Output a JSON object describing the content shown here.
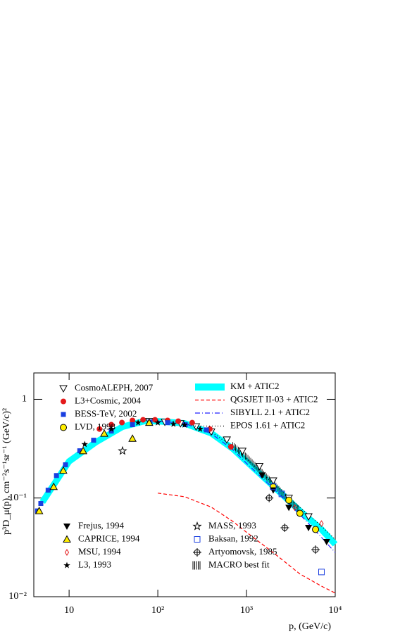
{
  "chart_data": {
    "type": "scatter",
    "x_label": "p, (GeV/c)",
    "y_label": "p³D_μ(p), cm⁻²s⁻¹sr⁻¹ (GeV/c)²",
    "xscale": "log",
    "yscale": "log",
    "xlim": [
      4,
      10000
    ],
    "ylim": [
      0.01,
      1.85
    ],
    "xticks": [
      10,
      {
        "value": 100,
        "label": "10²"
      },
      {
        "value": 1000,
        "label": "10³"
      },
      {
        "value": 10000,
        "label": "10⁴"
      }
    ],
    "yticks": [
      {
        "value": 0.01,
        "label": "10⁻²"
      },
      {
        "value": 0.1,
        "label": "10⁻¹"
      },
      1
    ],
    "series": [
      {
        "name": "CosmoALEPH, 2007",
        "color": "#000000",
        "marker": "down-triangle-open",
        "x": [
          80,
          120,
          180,
          270,
          400,
          600,
          900,
          1400,
          2000,
          3000,
          5000
        ],
        "values": [
          0.6,
          0.59,
          0.57,
          0.53,
          0.47,
          0.39,
          0.3,
          0.21,
          0.15,
          0.1,
          0.065
        ]
      },
      {
        "name": "L3+Cosmic, 2004",
        "color": "#e41a1c",
        "marker": "circle",
        "x": [
          22,
          29.9,
          39.4,
          51.8,
          68.2,
          93,
          129,
          170,
          244,
          386,
          667
        ],
        "values": [
          0.5,
          0.553,
          0.581,
          0.611,
          0.62,
          0.62,
          0.611,
          0.6,
          0.58,
          0.5,
          0.33
        ]
      },
      {
        "name": "BESS-TeV, 2002",
        "color": "#1a3fe0",
        "marker": "square",
        "x": [
          4.4,
          4.8,
          5.8,
          7.2,
          9.1,
          13.2,
          18.9,
          29.9,
          51.8,
          81.8,
          129,
          204,
          353
        ],
        "values": [
          0.074,
          0.088,
          0.12,
          0.169,
          0.217,
          0.301,
          0.385,
          0.477,
          0.553,
          0.59,
          0.58,
          0.553,
          0.49
        ]
      },
      {
        "name": "LVD, 1998",
        "color": "#ffee00",
        "marker": "circle-outline",
        "x": [
          2000,
          3000,
          4000,
          6000
        ],
        "values": [
          0.13,
          0.095,
          0.07,
          0.048
        ]
      },
      {
        "name": "KM + ATIC2",
        "color": "#00ffff",
        "line": "band",
        "x": [
          5,
          10,
          20,
          40,
          70,
          100,
          200,
          400,
          700,
          1000,
          2000,
          4000,
          7000,
          10000
        ],
        "values": [
          0.091,
          0.235,
          0.367,
          0.527,
          0.6,
          0.6,
          0.571,
          0.454,
          0.316,
          0.235,
          0.132,
          0.074,
          0.048,
          0.034
        ]
      },
      {
        "name": "QGSJET II-03 + ATIC2",
        "color": "#ff0000",
        "line": "dashed",
        "x": [
          100,
          200,
          400,
          700,
          1000,
          2000,
          4000,
          7000,
          10000
        ],
        "values": [
          0.112,
          0.103,
          0.081,
          0.058,
          0.045,
          0.028,
          0.017,
          0.0128,
          0.0109
        ]
      },
      {
        "name": "SIBYLL 2.1 + ATIC2",
        "color": "#2020ff",
        "line": "dashdot",
        "x": [
          100,
          200,
          400,
          700,
          1000,
          2000,
          4000,
          7000,
          10000
        ],
        "values": [
          0.6,
          0.57,
          0.45,
          0.31,
          0.225,
          0.125,
          0.068,
          0.04,
          0.028
        ]
      },
      {
        "name": "EPOS 1.61 + ATIC2",
        "color": "#000000",
        "line": "dotted",
        "x": [
          100,
          200,
          400,
          700,
          1000,
          2000,
          4000,
          7000,
          10000
        ],
        "values": [
          0.6,
          0.58,
          0.47,
          0.33,
          0.25,
          0.14,
          0.08,
          0.052,
          0.038
        ]
      },
      {
        "name": "Frejus, 1994",
        "color": "#000000",
        "marker": "down-triangle",
        "x": [
          1500,
          2000,
          3000,
          5000,
          8000
        ],
        "values": [
          0.17,
          0.12,
          0.08,
          0.05,
          0.036
        ]
      },
      {
        "name": "CAPRICE, 1994",
        "color": "#ffee00",
        "marker": "triangle-outline",
        "x": [
          4.6,
          6.7,
          8.6,
          14.4,
          24.9,
          51.8,
          80
        ],
        "values": [
          0.074,
          0.13,
          0.19,
          0.3,
          0.45,
          0.4,
          0.58
        ]
      },
      {
        "name": "MSU, 1994",
        "color": "#e41a1c",
        "marker": "diamond-open",
        "x": [
          3500,
          7000
        ],
        "values": [
          0.08,
          0.055
        ]
      },
      {
        "name": "L3, 1993",
        "color": "#000000",
        "marker": "star",
        "x": [
          15,
          30,
          60,
          100,
          150,
          200,
          300
        ],
        "values": [
          0.35,
          0.5,
          0.58,
          0.58,
          0.56,
          0.55,
          0.5
        ]
      },
      {
        "name": "MASS, 1993",
        "color": "#000000",
        "marker": "star-open",
        "x": [
          40
        ],
        "values": [
          0.3
        ]
      },
      {
        "name": "Baksan, 1992",
        "color": "#1a3fe0",
        "marker": "square-open",
        "x": [
          2000,
          2500,
          7000
        ],
        "values": [
          0.13,
          0.11,
          0.0178
        ]
      },
      {
        "name": "Artyomovsk, 1985",
        "color": "#000000",
        "marker": "cross-circle",
        "x": [
          1800,
          2700,
          6000
        ],
        "values": [
          0.1,
          0.05,
          0.03
        ]
      },
      {
        "name": "MACRO best fit",
        "color": "#000000",
        "line": "hatch",
        "x": [
          700,
          1000,
          1500,
          2000,
          3000,
          4000
        ],
        "values": [
          0.34,
          0.26,
          0.18,
          0.14,
          0.095,
          0.075
        ]
      }
    ]
  }
}
